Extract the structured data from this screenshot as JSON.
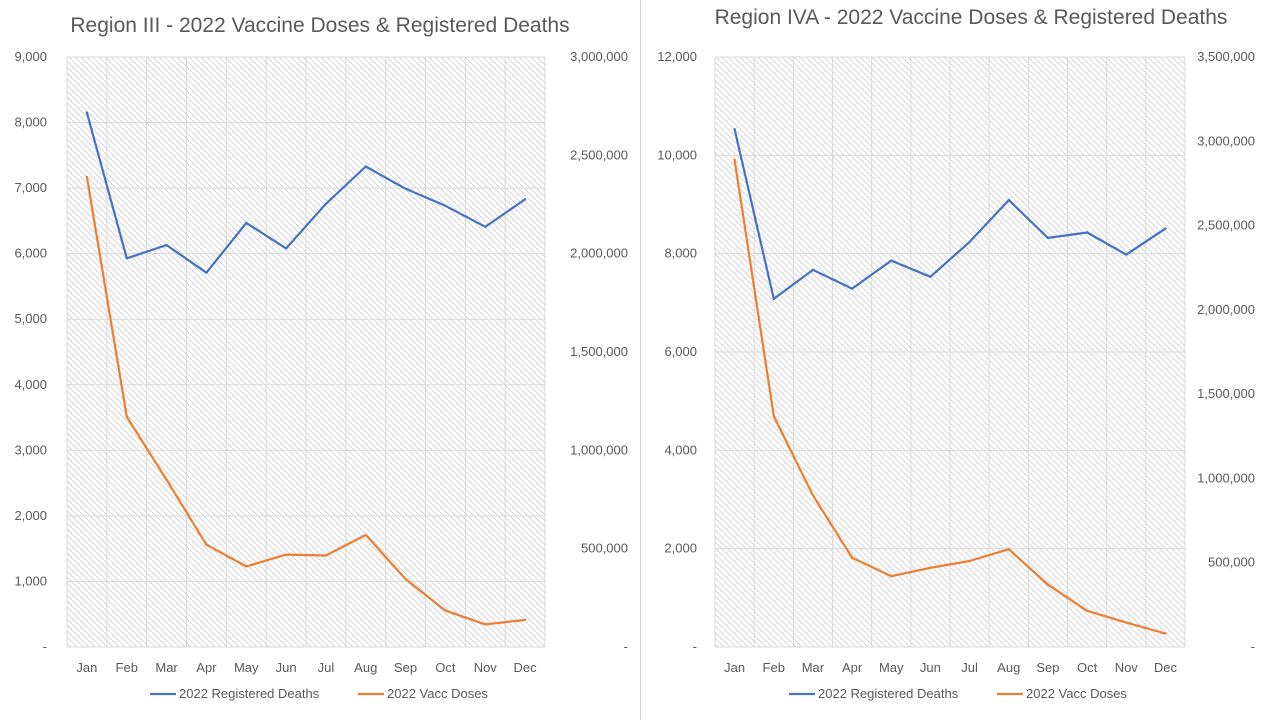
{
  "chart_data": [
    {
      "type": "line",
      "title": "Region III - 2022 Vaccine Doses & Registered Deaths",
      "categories": [
        "Jan",
        "Feb",
        "Mar",
        "Apr",
        "May",
        "Jun",
        "Jul",
        "Aug",
        "Sep",
        "Oct",
        "Nov",
        "Dec"
      ],
      "series": [
        {
          "name": "2022 Registered Deaths",
          "axis": "left",
          "color": "#4472C4",
          "values": [
            8150,
            5930,
            6130,
            5710,
            6470,
            6080,
            6760,
            7330,
            6990,
            6730,
            6410,
            6830
          ]
        },
        {
          "name": "2022 Vacc Doses",
          "axis": "right",
          "color": "#ED7D31",
          "values": [
            2390000,
            1170000,
            850000,
            520000,
            410000,
            470000,
            465000,
            570000,
            345000,
            185000,
            115000,
            138000
          ]
        }
      ],
      "y_left": {
        "min": 0,
        "max": 9000,
        "ticks": [
          "-",
          "1,000",
          "2,000",
          "3,000",
          "4,000",
          "5,000",
          "6,000",
          "7,000",
          "8,000",
          "9,000"
        ]
      },
      "y_right": {
        "min": 0,
        "max": 3000000,
        "ticks": [
          "-",
          "500,000",
          "1,000,000",
          "1,500,000",
          "2,000,000",
          "2,500,000",
          "3,000,000"
        ]
      },
      "grid": true,
      "legend_position": "bottom"
    },
    {
      "type": "line",
      "title": "Region IVA - 2022 Vaccine Doses & Registered Deaths",
      "categories": [
        "Jan",
        "Feb",
        "Mar",
        "Apr",
        "May",
        "Jun",
        "Jul",
        "Aug",
        "Sep",
        "Oct",
        "Nov",
        "Dec"
      ],
      "series": [
        {
          "name": "2022 Registered Deaths",
          "axis": "left",
          "color": "#4472C4",
          "values": [
            10530,
            7080,
            7670,
            7290,
            7860,
            7530,
            8240,
            9090,
            8320,
            8430,
            7980,
            8510
          ]
        },
        {
          "name": "2022 Vacc Doses",
          "axis": "right",
          "color": "#ED7D31",
          "values": [
            2890000,
            1370000,
            900000,
            530000,
            420000,
            470000,
            510000,
            580000,
            370000,
            215000,
            145000,
            80000
          ]
        }
      ],
      "y_left": {
        "min": 0,
        "max": 12000,
        "ticks": [
          "-",
          "2,000",
          "4,000",
          "6,000",
          "8,000",
          "10,000",
          "12,000"
        ]
      },
      "y_right": {
        "min": 0,
        "max": 3500000,
        "ticks": [
          "-",
          "500,000",
          "1,000,000",
          "1,500,000",
          "2,000,000",
          "2,500,000",
          "3,000,000",
          "3,500,000"
        ]
      },
      "grid": true,
      "legend_position": "bottom"
    }
  ]
}
